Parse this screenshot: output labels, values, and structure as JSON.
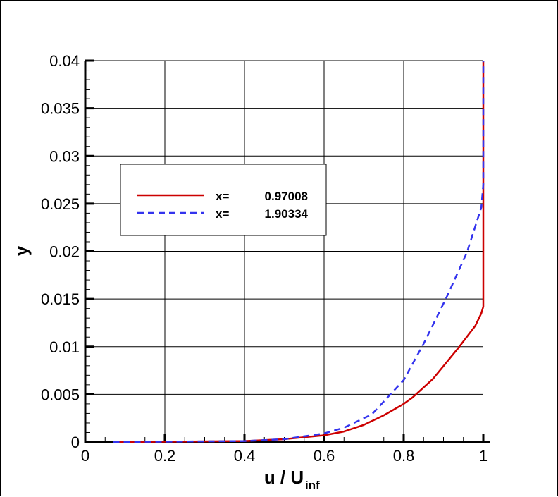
{
  "chart_data": {
    "type": "line",
    "title": "",
    "xlabel": "u / U",
    "xlabel_subscript": "inf",
    "ylabel": "y",
    "xlim": [
      0,
      1
    ],
    "ylim": [
      0,
      0.04
    ],
    "grid": true,
    "legend_placement": "upper-left",
    "x_ticks": [
      "0",
      "0.2",
      "0.4",
      "0.6",
      "0.8",
      "1"
    ],
    "x_tick_values": [
      0,
      0.2,
      0.4,
      0.6,
      0.8,
      1
    ],
    "y_ticks": [
      "0",
      "0.005",
      "0.01",
      "0.015",
      "0.02",
      "0.025",
      "0.03",
      "0.035",
      "0.04"
    ],
    "y_tick_values": [
      0,
      0.005,
      0.01,
      0.015,
      0.02,
      0.025,
      0.03,
      0.035,
      0.04
    ],
    "series": [
      {
        "name": "x=     0.97008",
        "label_prefix": "x=",
        "label_value": "0.97008",
        "color": "#cc0000",
        "style": "solid",
        "x": [
          0.07,
          0.4,
          0.5,
          0.6,
          0.65,
          0.7,
          0.75,
          0.8,
          0.823,
          0.873,
          0.938,
          0.98,
          0.995,
          1.0,
          1.0
        ],
        "y": [
          0,
          0.0001,
          0.0003,
          0.0007,
          0.0011,
          0.0018,
          0.0028,
          0.004,
          0.0047,
          0.0066,
          0.0099,
          0.0122,
          0.0135,
          0.0142,
          0.04
        ]
      },
      {
        "name": "x=     1.90334",
        "label_prefix": "x=",
        "label_value": "1.90334",
        "color": "#3333ee",
        "style": "dashed",
        "x": [
          0.07,
          0.4,
          0.5,
          0.6,
          0.65,
          0.72,
          0.8,
          0.85,
          0.908,
          0.959,
          0.995,
          1.0,
          1.0
        ],
        "y": [
          0,
          0.0001,
          0.0003,
          0.0009,
          0.0015,
          0.0029,
          0.0065,
          0.0103,
          0.0152,
          0.0199,
          0.0246,
          0.027,
          0.04
        ]
      }
    ]
  }
}
